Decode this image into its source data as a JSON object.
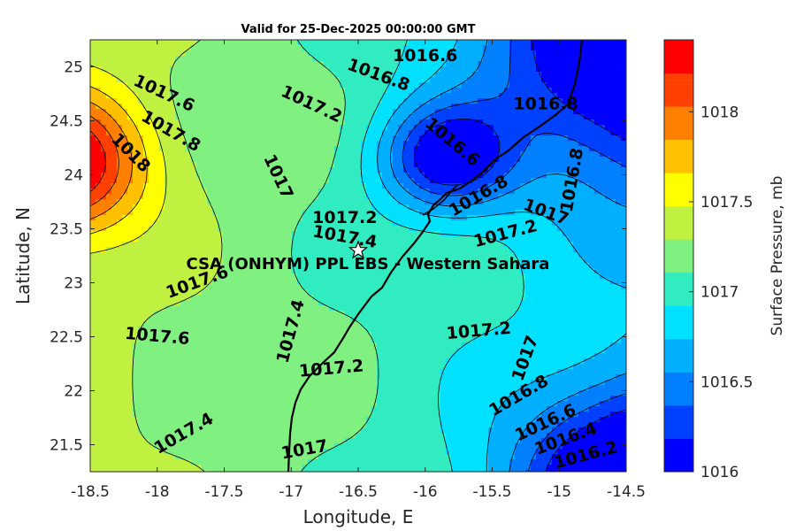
{
  "chart_data": {
    "type": "contour",
    "title": "Valid for 25-Dec-2025 00:00:00 GMT",
    "xlabel": "Longitude, E",
    "ylabel": "Latitude, N",
    "xlim": [
      -18.5,
      -14.5
    ],
    "ylim": [
      21.25,
      25.25
    ],
    "xticks": [
      -18.5,
      -18,
      -17.5,
      -17,
      -16.5,
      -16,
      -15.5,
      -15,
      -14.5
    ],
    "xtick_labels": [
      "-18.5",
      "-18",
      "-17.5",
      "-17",
      "-16.5",
      "-16",
      "-15.5",
      "-15",
      "-14.5"
    ],
    "yticks": [
      21.5,
      22,
      22.5,
      23,
      23.5,
      24,
      24.5,
      25
    ],
    "ytick_labels": [
      "21.5",
      "22",
      "22.5",
      "23",
      "23.5",
      "24",
      "24.5",
      "25"
    ],
    "colorbar": {
      "label": "Surface Pressure, mb",
      "range": [
        1016,
        1018.4
      ],
      "step": 0.2,
      "ticks": [
        1016,
        1016.5,
        1017,
        1017.5,
        1018
      ],
      "tick_labels": [
        "1016",
        "1016.5",
        "1017",
        "1017.5",
        "1018"
      ],
      "colors": [
        "#0000ff",
        "#0040ff",
        "#0080ff",
        "#00b0ff",
        "#00e0ff",
        "#30ecc0",
        "#80f080",
        "#c0f040",
        "#ffff00",
        "#ffc000",
        "#ff8000",
        "#ff4000",
        "#ff0000"
      ]
    },
    "station": {
      "name": "CSA (ONHYM) PPL EBS  - Western Sahara",
      "lon": -16.5,
      "lat": 23.3
    },
    "pressure_centers": [
      {
        "lon": -18.75,
        "lat": 24.1,
        "value": 1018.3,
        "spread": 0.45
      },
      {
        "lon": -15.85,
        "lat": 24.15,
        "value": 1016.15,
        "spread": 0.35
      },
      {
        "lon": -14.2,
        "lat": 25.3,
        "value": 1015.7,
        "spread": 0.9
      },
      {
        "lon": -14.3,
        "lat": 21.0,
        "value": 1015.6,
        "spread": 0.7
      }
    ],
    "contour_labels": [
      {
        "text": "1016.6",
        "lon": -16.0,
        "lat": 25.1,
        "angle": 0
      },
      {
        "text": "1016.8",
        "lon": -16.35,
        "lat": 24.92,
        "angle": 20
      },
      {
        "text": "1016.8",
        "lon": -15.1,
        "lat": 24.65,
        "angle": 0
      },
      {
        "text": "1017.6",
        "lon": -17.95,
        "lat": 24.75,
        "angle": 25
      },
      {
        "text": "1017.2",
        "lon": -16.85,
        "lat": 24.65,
        "angle": 25
      },
      {
        "text": "1017.8",
        "lon": -17.9,
        "lat": 24.4,
        "angle": 30
      },
      {
        "text": "1018",
        "lon": -18.2,
        "lat": 24.2,
        "angle": 45
      },
      {
        "text": "1016.6",
        "lon": -15.8,
        "lat": 24.3,
        "angle": 40
      },
      {
        "text": "1017",
        "lon": -17.1,
        "lat": 23.98,
        "angle": 65
      },
      {
        "text": "1016.8",
        "lon": -15.6,
        "lat": 23.8,
        "angle": -30
      },
      {
        "text": "1016.8",
        "lon": -14.9,
        "lat": 23.95,
        "angle": -80
      },
      {
        "text": "1017",
        "lon": -15.1,
        "lat": 23.65,
        "angle": 20
      },
      {
        "text": "1017.2",
        "lon": -16.6,
        "lat": 23.6,
        "angle": 0
      },
      {
        "text": "1017.4",
        "lon": -16.6,
        "lat": 23.42,
        "angle": 10
      },
      {
        "text": "1017.2",
        "lon": -15.4,
        "lat": 23.45,
        "angle": -15
      },
      {
        "text": "1017.6",
        "lon": -17.7,
        "lat": 23.0,
        "angle": -20
      },
      {
        "text": "1017.6",
        "lon": -18.0,
        "lat": 22.5,
        "angle": 5
      },
      {
        "text": "1017.4",
        "lon": -17.0,
        "lat": 22.55,
        "angle": -75
      },
      {
        "text": "1017.2",
        "lon": -15.6,
        "lat": 22.55,
        "angle": -5
      },
      {
        "text": "1017.2",
        "lon": -16.7,
        "lat": 22.2,
        "angle": -5
      },
      {
        "text": "1017",
        "lon": -15.25,
        "lat": 22.3,
        "angle": -70
      },
      {
        "text": "1016.8",
        "lon": -15.3,
        "lat": 21.95,
        "angle": -30
      },
      {
        "text": "1016.6",
        "lon": -15.1,
        "lat": 21.7,
        "angle": -25
      },
      {
        "text": "1016.4",
        "lon": -14.95,
        "lat": 21.55,
        "angle": -20
      },
      {
        "text": "1017.4",
        "lon": -17.8,
        "lat": 21.6,
        "angle": -30
      },
      {
        "text": "1017",
        "lon": -16.9,
        "lat": 21.45,
        "angle": -10
      },
      {
        "text": "1016.2",
        "lon": -14.8,
        "lat": 21.4,
        "angle": -15
      }
    ]
  }
}
